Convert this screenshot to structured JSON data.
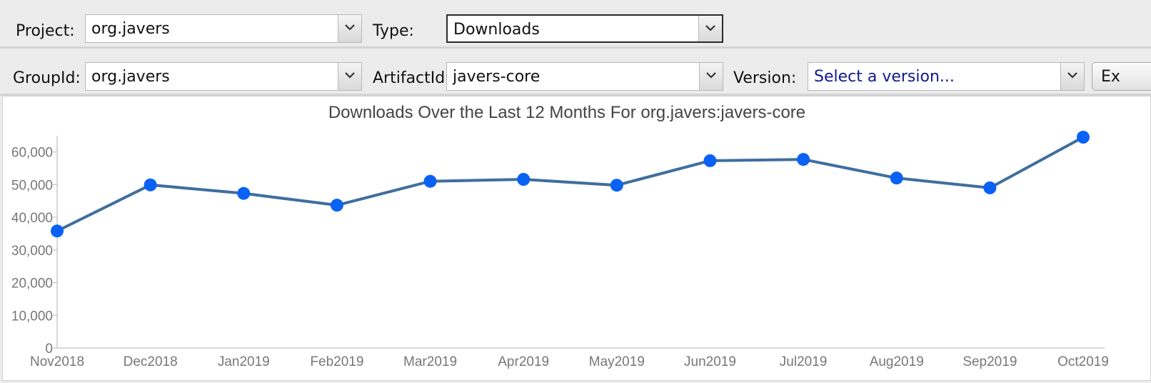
{
  "toolbar1": {
    "project_label": "Project:",
    "project_value": "org.javers",
    "type_label": "Type:",
    "type_value": "Downloads"
  },
  "toolbar2": {
    "groupid_label": "GroupId:",
    "groupid_value": "org.javers",
    "artifactid_label": "ArtifactId:",
    "artifactid_value": "javers-core",
    "version_label": "Version:",
    "version_placeholder": "Select a version...",
    "export_label": "Ex"
  },
  "icons": {
    "dropdown": "chevron-down-icon"
  },
  "colors": {
    "line": "#3f6e9e",
    "point": "#0a62f5",
    "placeholder_text": "#0f1a8c",
    "axis": "#cccccc",
    "tick_text": "#777777",
    "title_text": "#444444"
  },
  "chart_data": {
    "type": "line",
    "title": "Downloads Over the Last 12 Months For org.javers:javers-core",
    "categories": [
      "Nov2018",
      "Dec2018",
      "Jan2019",
      "Feb2019",
      "Mar2019",
      "Apr2019",
      "May2019",
      "Jun2019",
      "Jul2019",
      "Aug2019",
      "Sep2019",
      "Oct2019"
    ],
    "series": [
      {
        "values": [
          35800,
          49900,
          47300,
          43700,
          51000,
          51600,
          49800,
          57300,
          57700,
          52000,
          49000,
          64500
        ]
      }
    ],
    "ylim": [
      0,
      64500
    ],
    "yticks": [
      0,
      10000,
      20000,
      30000,
      40000,
      50000,
      60000
    ],
    "ytick_labels": [
      "0",
      "10,000",
      "20,000",
      "30,000",
      "40,000",
      "50,000",
      "60,000"
    ],
    "grid": false,
    "legend": false
  }
}
